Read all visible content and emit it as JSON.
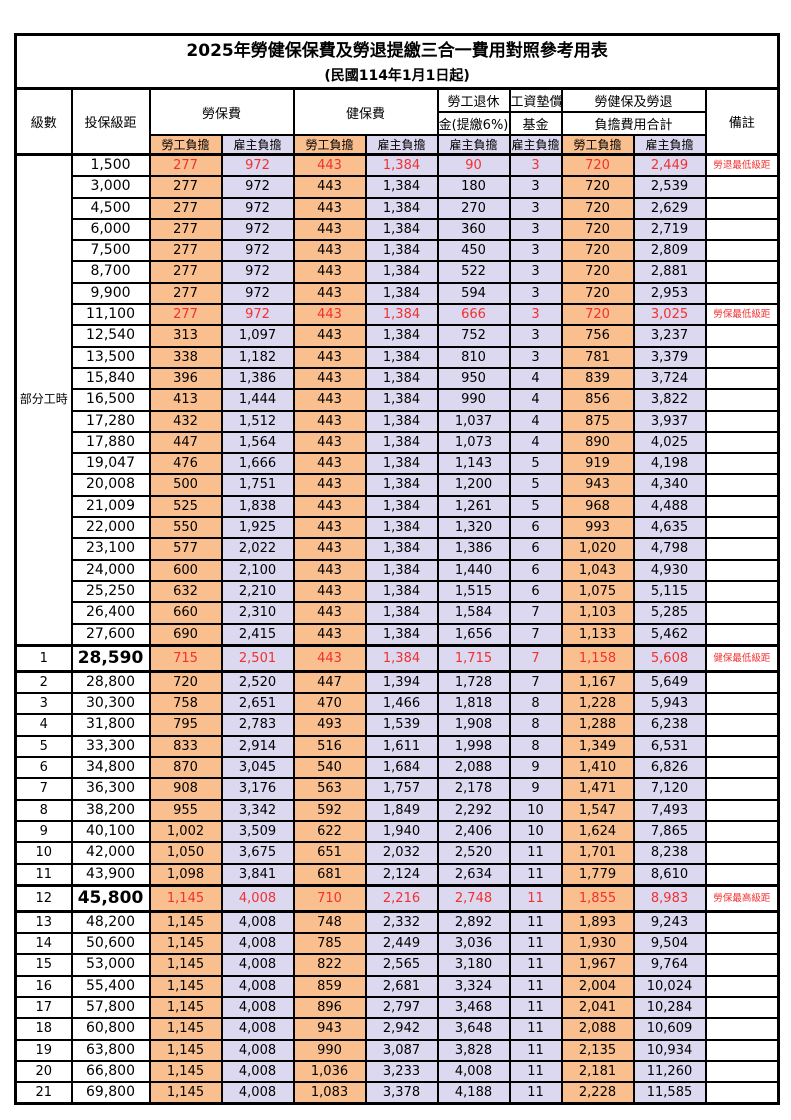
{
  "title": "2025年勞健保保費及勞退提繳三合一費用對照參考用表",
  "subtitle": "(民國114年1月1日起)",
  "header": {
    "level": "級數",
    "bracket": "投保級距",
    "labor_fee": "勞保費",
    "health_fee": "健保費",
    "pension_line1": "勞工退休",
    "pension_line2": "金(提繳6%)",
    "wage_fund_line1": "工資墊償",
    "wage_fund_line2": "基金",
    "total_line1": "勞健保及勞退",
    "total_line2": "負擔費用合計",
    "note": "備註",
    "employee_share": "勞工負擔",
    "employer_share": "雇主負擔"
  },
  "sections": {
    "part_time_label": "部分工時"
  },
  "colors": {
    "employee_bg": "#FABF8F",
    "employer_bg": "#DBD8EF",
    "highlight_text": "#F23030",
    "border": "#000000"
  },
  "rows": [
    {
      "level": "",
      "bracket": "1,500",
      "values": [
        "277",
        "972",
        "443",
        "1,384",
        "90",
        "3",
        "720",
        "2,449"
      ],
      "note": "勞退最低級距",
      "red": true,
      "thick": false,
      "big": false
    },
    {
      "level": "",
      "bracket": "3,000",
      "values": [
        "277",
        "972",
        "443",
        "1,384",
        "180",
        "3",
        "720",
        "2,539"
      ],
      "note": "",
      "red": false,
      "thick": false,
      "big": false
    },
    {
      "level": "",
      "bracket": "4,500",
      "values": [
        "277",
        "972",
        "443",
        "1,384",
        "270",
        "3",
        "720",
        "2,629"
      ],
      "note": "",
      "red": false,
      "thick": false,
      "big": false
    },
    {
      "level": "",
      "bracket": "6,000",
      "values": [
        "277",
        "972",
        "443",
        "1,384",
        "360",
        "3",
        "720",
        "2,719"
      ],
      "note": "",
      "red": false,
      "thick": false,
      "big": false
    },
    {
      "level": "",
      "bracket": "7,500",
      "values": [
        "277",
        "972",
        "443",
        "1,384",
        "450",
        "3",
        "720",
        "2,809"
      ],
      "note": "",
      "red": false,
      "thick": false,
      "big": false
    },
    {
      "level": "",
      "bracket": "8,700",
      "values": [
        "277",
        "972",
        "443",
        "1,384",
        "522",
        "3",
        "720",
        "2,881"
      ],
      "note": "",
      "red": false,
      "thick": false,
      "big": false
    },
    {
      "level": "",
      "bracket": "9,900",
      "values": [
        "277",
        "972",
        "443",
        "1,384",
        "594",
        "3",
        "720",
        "2,953"
      ],
      "note": "",
      "red": false,
      "thick": false,
      "big": false
    },
    {
      "level": "",
      "bracket": "11,100",
      "values": [
        "277",
        "972",
        "443",
        "1,384",
        "666",
        "3",
        "720",
        "3,025"
      ],
      "note": "勞保最低級距",
      "red": true,
      "thick": false,
      "big": false
    },
    {
      "level": "",
      "bracket": "12,540",
      "values": [
        "313",
        "1,097",
        "443",
        "1,384",
        "752",
        "3",
        "756",
        "3,237"
      ],
      "note": "",
      "red": false,
      "thick": false,
      "big": false
    },
    {
      "level": "",
      "bracket": "13,500",
      "values": [
        "338",
        "1,182",
        "443",
        "1,384",
        "810",
        "3",
        "781",
        "3,379"
      ],
      "note": "",
      "red": false,
      "thick": false,
      "big": false
    },
    {
      "level": "",
      "bracket": "15,840",
      "values": [
        "396",
        "1,386",
        "443",
        "1,384",
        "950",
        "4",
        "839",
        "3,724"
      ],
      "note": "",
      "red": false,
      "thick": false,
      "big": false
    },
    {
      "level": "",
      "bracket": "16,500",
      "values": [
        "413",
        "1,444",
        "443",
        "1,384",
        "990",
        "4",
        "856",
        "3,822"
      ],
      "note": "",
      "red": false,
      "thick": false,
      "big": false
    },
    {
      "level": "",
      "bracket": "17,280",
      "values": [
        "432",
        "1,512",
        "443",
        "1,384",
        "1,037",
        "4",
        "875",
        "3,937"
      ],
      "note": "",
      "red": false,
      "thick": false,
      "big": false
    },
    {
      "level": "",
      "bracket": "17,880",
      "values": [
        "447",
        "1,564",
        "443",
        "1,384",
        "1,073",
        "4",
        "890",
        "4,025"
      ],
      "note": "",
      "red": false,
      "thick": false,
      "big": false
    },
    {
      "level": "",
      "bracket": "19,047",
      "values": [
        "476",
        "1,666",
        "443",
        "1,384",
        "1,143",
        "5",
        "919",
        "4,198"
      ],
      "note": "",
      "red": false,
      "thick": false,
      "big": false
    },
    {
      "level": "",
      "bracket": "20,008",
      "values": [
        "500",
        "1,751",
        "443",
        "1,384",
        "1,200",
        "5",
        "943",
        "4,340"
      ],
      "note": "",
      "red": false,
      "thick": false,
      "big": false
    },
    {
      "level": "",
      "bracket": "21,009",
      "values": [
        "525",
        "1,838",
        "443",
        "1,384",
        "1,261",
        "5",
        "968",
        "4,488"
      ],
      "note": "",
      "red": false,
      "thick": false,
      "big": false
    },
    {
      "level": "",
      "bracket": "22,000",
      "values": [
        "550",
        "1,925",
        "443",
        "1,384",
        "1,320",
        "6",
        "993",
        "4,635"
      ],
      "note": "",
      "red": false,
      "thick": false,
      "big": false
    },
    {
      "level": "",
      "bracket": "23,100",
      "values": [
        "577",
        "2,022",
        "443",
        "1,384",
        "1,386",
        "6",
        "1,020",
        "4,798"
      ],
      "note": "",
      "red": false,
      "thick": false,
      "big": false
    },
    {
      "level": "",
      "bracket": "24,000",
      "values": [
        "600",
        "2,100",
        "443",
        "1,384",
        "1,440",
        "6",
        "1,043",
        "4,930"
      ],
      "note": "",
      "red": false,
      "thick": false,
      "big": false
    },
    {
      "level": "",
      "bracket": "25,250",
      "values": [
        "632",
        "2,210",
        "443",
        "1,384",
        "1,515",
        "6",
        "1,075",
        "5,115"
      ],
      "note": "",
      "red": false,
      "thick": false,
      "big": false
    },
    {
      "level": "",
      "bracket": "26,400",
      "values": [
        "660",
        "2,310",
        "443",
        "1,384",
        "1,584",
        "7",
        "1,103",
        "5,285"
      ],
      "note": "",
      "red": false,
      "thick": false,
      "big": false
    },
    {
      "level": "",
      "bracket": "27,600",
      "values": [
        "690",
        "2,415",
        "443",
        "1,384",
        "1,656",
        "7",
        "1,133",
        "5,462"
      ],
      "note": "",
      "red": false,
      "thick": false,
      "big": false
    },
    {
      "level": "1",
      "bracket": "28,590",
      "values": [
        "715",
        "2,501",
        "443",
        "1,384",
        "1,715",
        "7",
        "1,158",
        "5,608"
      ],
      "note": "健保最低級距",
      "red": true,
      "thick": true,
      "big": true
    },
    {
      "level": "2",
      "bracket": "28,800",
      "values": [
        "720",
        "2,520",
        "447",
        "1,394",
        "1,728",
        "7",
        "1,167",
        "5,649"
      ],
      "note": "",
      "red": false,
      "thick": false,
      "big": false
    },
    {
      "level": "3",
      "bracket": "30,300",
      "values": [
        "758",
        "2,651",
        "470",
        "1,466",
        "1,818",
        "8",
        "1,228",
        "5,943"
      ],
      "note": "",
      "red": false,
      "thick": false,
      "big": false
    },
    {
      "level": "4",
      "bracket": "31,800",
      "values": [
        "795",
        "2,783",
        "493",
        "1,539",
        "1,908",
        "8",
        "1,288",
        "6,238"
      ],
      "note": "",
      "red": false,
      "thick": false,
      "big": false
    },
    {
      "level": "5",
      "bracket": "33,300",
      "values": [
        "833",
        "2,914",
        "516",
        "1,611",
        "1,998",
        "8",
        "1,349",
        "6,531"
      ],
      "note": "",
      "red": false,
      "thick": false,
      "big": false
    },
    {
      "level": "6",
      "bracket": "34,800",
      "values": [
        "870",
        "3,045",
        "540",
        "1,684",
        "2,088",
        "9",
        "1,410",
        "6,826"
      ],
      "note": "",
      "red": false,
      "thick": false,
      "big": false
    },
    {
      "level": "7",
      "bracket": "36,300",
      "values": [
        "908",
        "3,176",
        "563",
        "1,757",
        "2,178",
        "9",
        "1,471",
        "7,120"
      ],
      "note": "",
      "red": false,
      "thick": false,
      "big": false
    },
    {
      "level": "8",
      "bracket": "38,200",
      "values": [
        "955",
        "3,342",
        "592",
        "1,849",
        "2,292",
        "10",
        "1,547",
        "7,493"
      ],
      "note": "",
      "red": false,
      "thick": false,
      "big": false
    },
    {
      "level": "9",
      "bracket": "40,100",
      "values": [
        "1,002",
        "3,509",
        "622",
        "1,940",
        "2,406",
        "10",
        "1,624",
        "7,865"
      ],
      "note": "",
      "red": false,
      "thick": false,
      "big": false
    },
    {
      "level": "10",
      "bracket": "42,000",
      "values": [
        "1,050",
        "3,675",
        "651",
        "2,032",
        "2,520",
        "11",
        "1,701",
        "8,238"
      ],
      "note": "",
      "red": false,
      "thick": false,
      "big": false
    },
    {
      "level": "11",
      "bracket": "43,900",
      "values": [
        "1,098",
        "3,841",
        "681",
        "2,124",
        "2,634",
        "11",
        "1,779",
        "8,610"
      ],
      "note": "",
      "red": false,
      "thick": false,
      "big": false
    },
    {
      "level": "12",
      "bracket": "45,800",
      "values": [
        "1,145",
        "4,008",
        "710",
        "2,216",
        "2,748",
        "11",
        "1,855",
        "8,983"
      ],
      "note": "勞保最高級距",
      "red": true,
      "thick": true,
      "big": true
    },
    {
      "level": "13",
      "bracket": "48,200",
      "values": [
        "1,145",
        "4,008",
        "748",
        "2,332",
        "2,892",
        "11",
        "1,893",
        "9,243"
      ],
      "note": "",
      "red": false,
      "thick": false,
      "big": false
    },
    {
      "level": "14",
      "bracket": "50,600",
      "values": [
        "1,145",
        "4,008",
        "785",
        "2,449",
        "3,036",
        "11",
        "1,930",
        "9,504"
      ],
      "note": "",
      "red": false,
      "thick": false,
      "big": false
    },
    {
      "level": "15",
      "bracket": "53,000",
      "values": [
        "1,145",
        "4,008",
        "822",
        "2,565",
        "3,180",
        "11",
        "1,967",
        "9,764"
      ],
      "note": "",
      "red": false,
      "thick": false,
      "big": false
    },
    {
      "level": "16",
      "bracket": "55,400",
      "values": [
        "1,145",
        "4,008",
        "859",
        "2,681",
        "3,324",
        "11",
        "2,004",
        "10,024"
      ],
      "note": "",
      "red": false,
      "thick": false,
      "big": false
    },
    {
      "level": "17",
      "bracket": "57,800",
      "values": [
        "1,145",
        "4,008",
        "896",
        "2,797",
        "3,468",
        "11",
        "2,041",
        "10,284"
      ],
      "note": "",
      "red": false,
      "thick": false,
      "big": false
    },
    {
      "level": "18",
      "bracket": "60,800",
      "values": [
        "1,145",
        "4,008",
        "943",
        "2,942",
        "3,648",
        "11",
        "2,088",
        "10,609"
      ],
      "note": "",
      "red": false,
      "thick": false,
      "big": false
    },
    {
      "level": "19",
      "bracket": "63,800",
      "values": [
        "1,145",
        "4,008",
        "990",
        "3,087",
        "3,828",
        "11",
        "2,135",
        "10,934"
      ],
      "note": "",
      "red": false,
      "thick": false,
      "big": false
    },
    {
      "level": "20",
      "bracket": "66,800",
      "values": [
        "1,145",
        "4,008",
        "1,036",
        "3,233",
        "4,008",
        "11",
        "2,181",
        "11,260"
      ],
      "note": "",
      "red": false,
      "thick": false,
      "big": false
    },
    {
      "level": "21",
      "bracket": "69,800",
      "values": [
        "1,145",
        "4,008",
        "1,083",
        "3,378",
        "4,188",
        "11",
        "2,228",
        "11,585"
      ],
      "note": "",
      "red": false,
      "thick": false,
      "big": false
    }
  ]
}
